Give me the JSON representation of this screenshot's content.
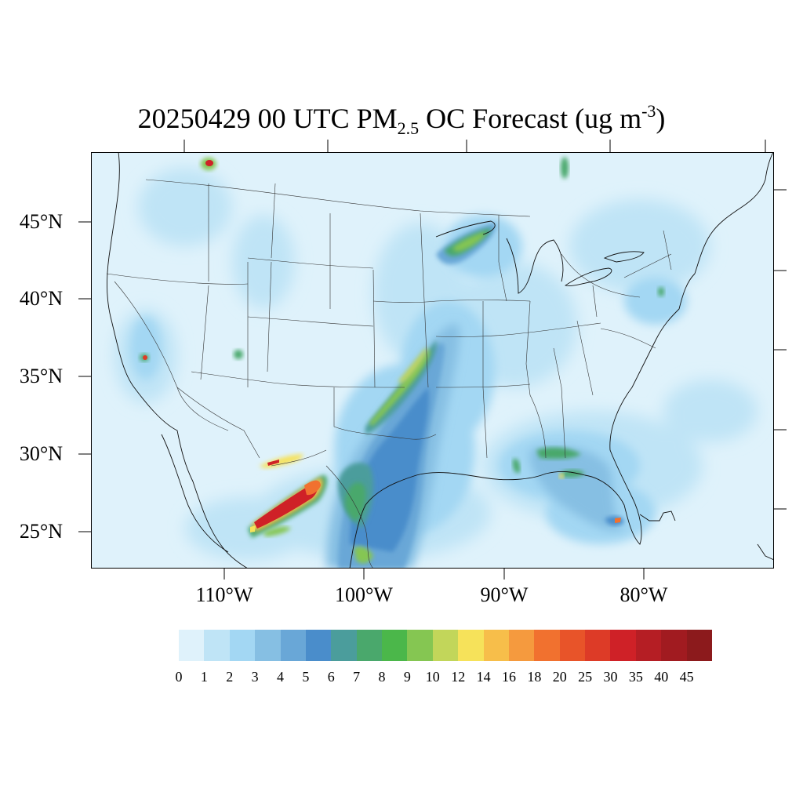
{
  "title": {
    "prefix": "20250429 00 UTC PM",
    "sub": "2.5",
    "mid": " OC Forecast (ug m",
    "sup": "-3",
    "suffix": ")"
  },
  "map": {
    "region": "CONUS",
    "projection": "lambert-conformal",
    "lat_labels": [
      "45°N",
      "40°N",
      "35°N",
      "30°N",
      "25°N"
    ],
    "lon_labels": [
      "110°W",
      "100°W",
      "90°W",
      "80°W"
    ],
    "plumes": [
      {
        "label": "central plains smoke plume",
        "level_range": [
          6,
          14
        ]
      },
      {
        "label": "northern mexico fire plume",
        "level_range": [
          16,
          45
        ]
      },
      {
        "label": "upper midwest plume",
        "level_range": [
          7,
          10
        ]
      },
      {
        "label": "southeast florida/georgia",
        "level_range": [
          6,
          16
        ]
      }
    ]
  },
  "colorbar": {
    "labels": [
      "0",
      "1",
      "2",
      "3",
      "4",
      "5",
      "6",
      "7",
      "8",
      "9",
      "10",
      "12",
      "14",
      "16",
      "18",
      "20",
      "25",
      "30",
      "35",
      "40",
      "45"
    ],
    "colors": [
      "#dff2fb",
      "#bfe4f6",
      "#a3d7f3",
      "#86bfe3",
      "#69a7d7",
      "#4a8dcb",
      "#4b9d9c",
      "#4aa86c",
      "#4bb74a",
      "#85c652",
      "#c2d65a",
      "#f6e25a",
      "#f7be4a",
      "#f59a3e",
      "#f1712f",
      "#e85429",
      "#dd3b27",
      "#cf2127",
      "#b51e24",
      "#a11b20",
      "#8c1a1c"
    ]
  }
}
